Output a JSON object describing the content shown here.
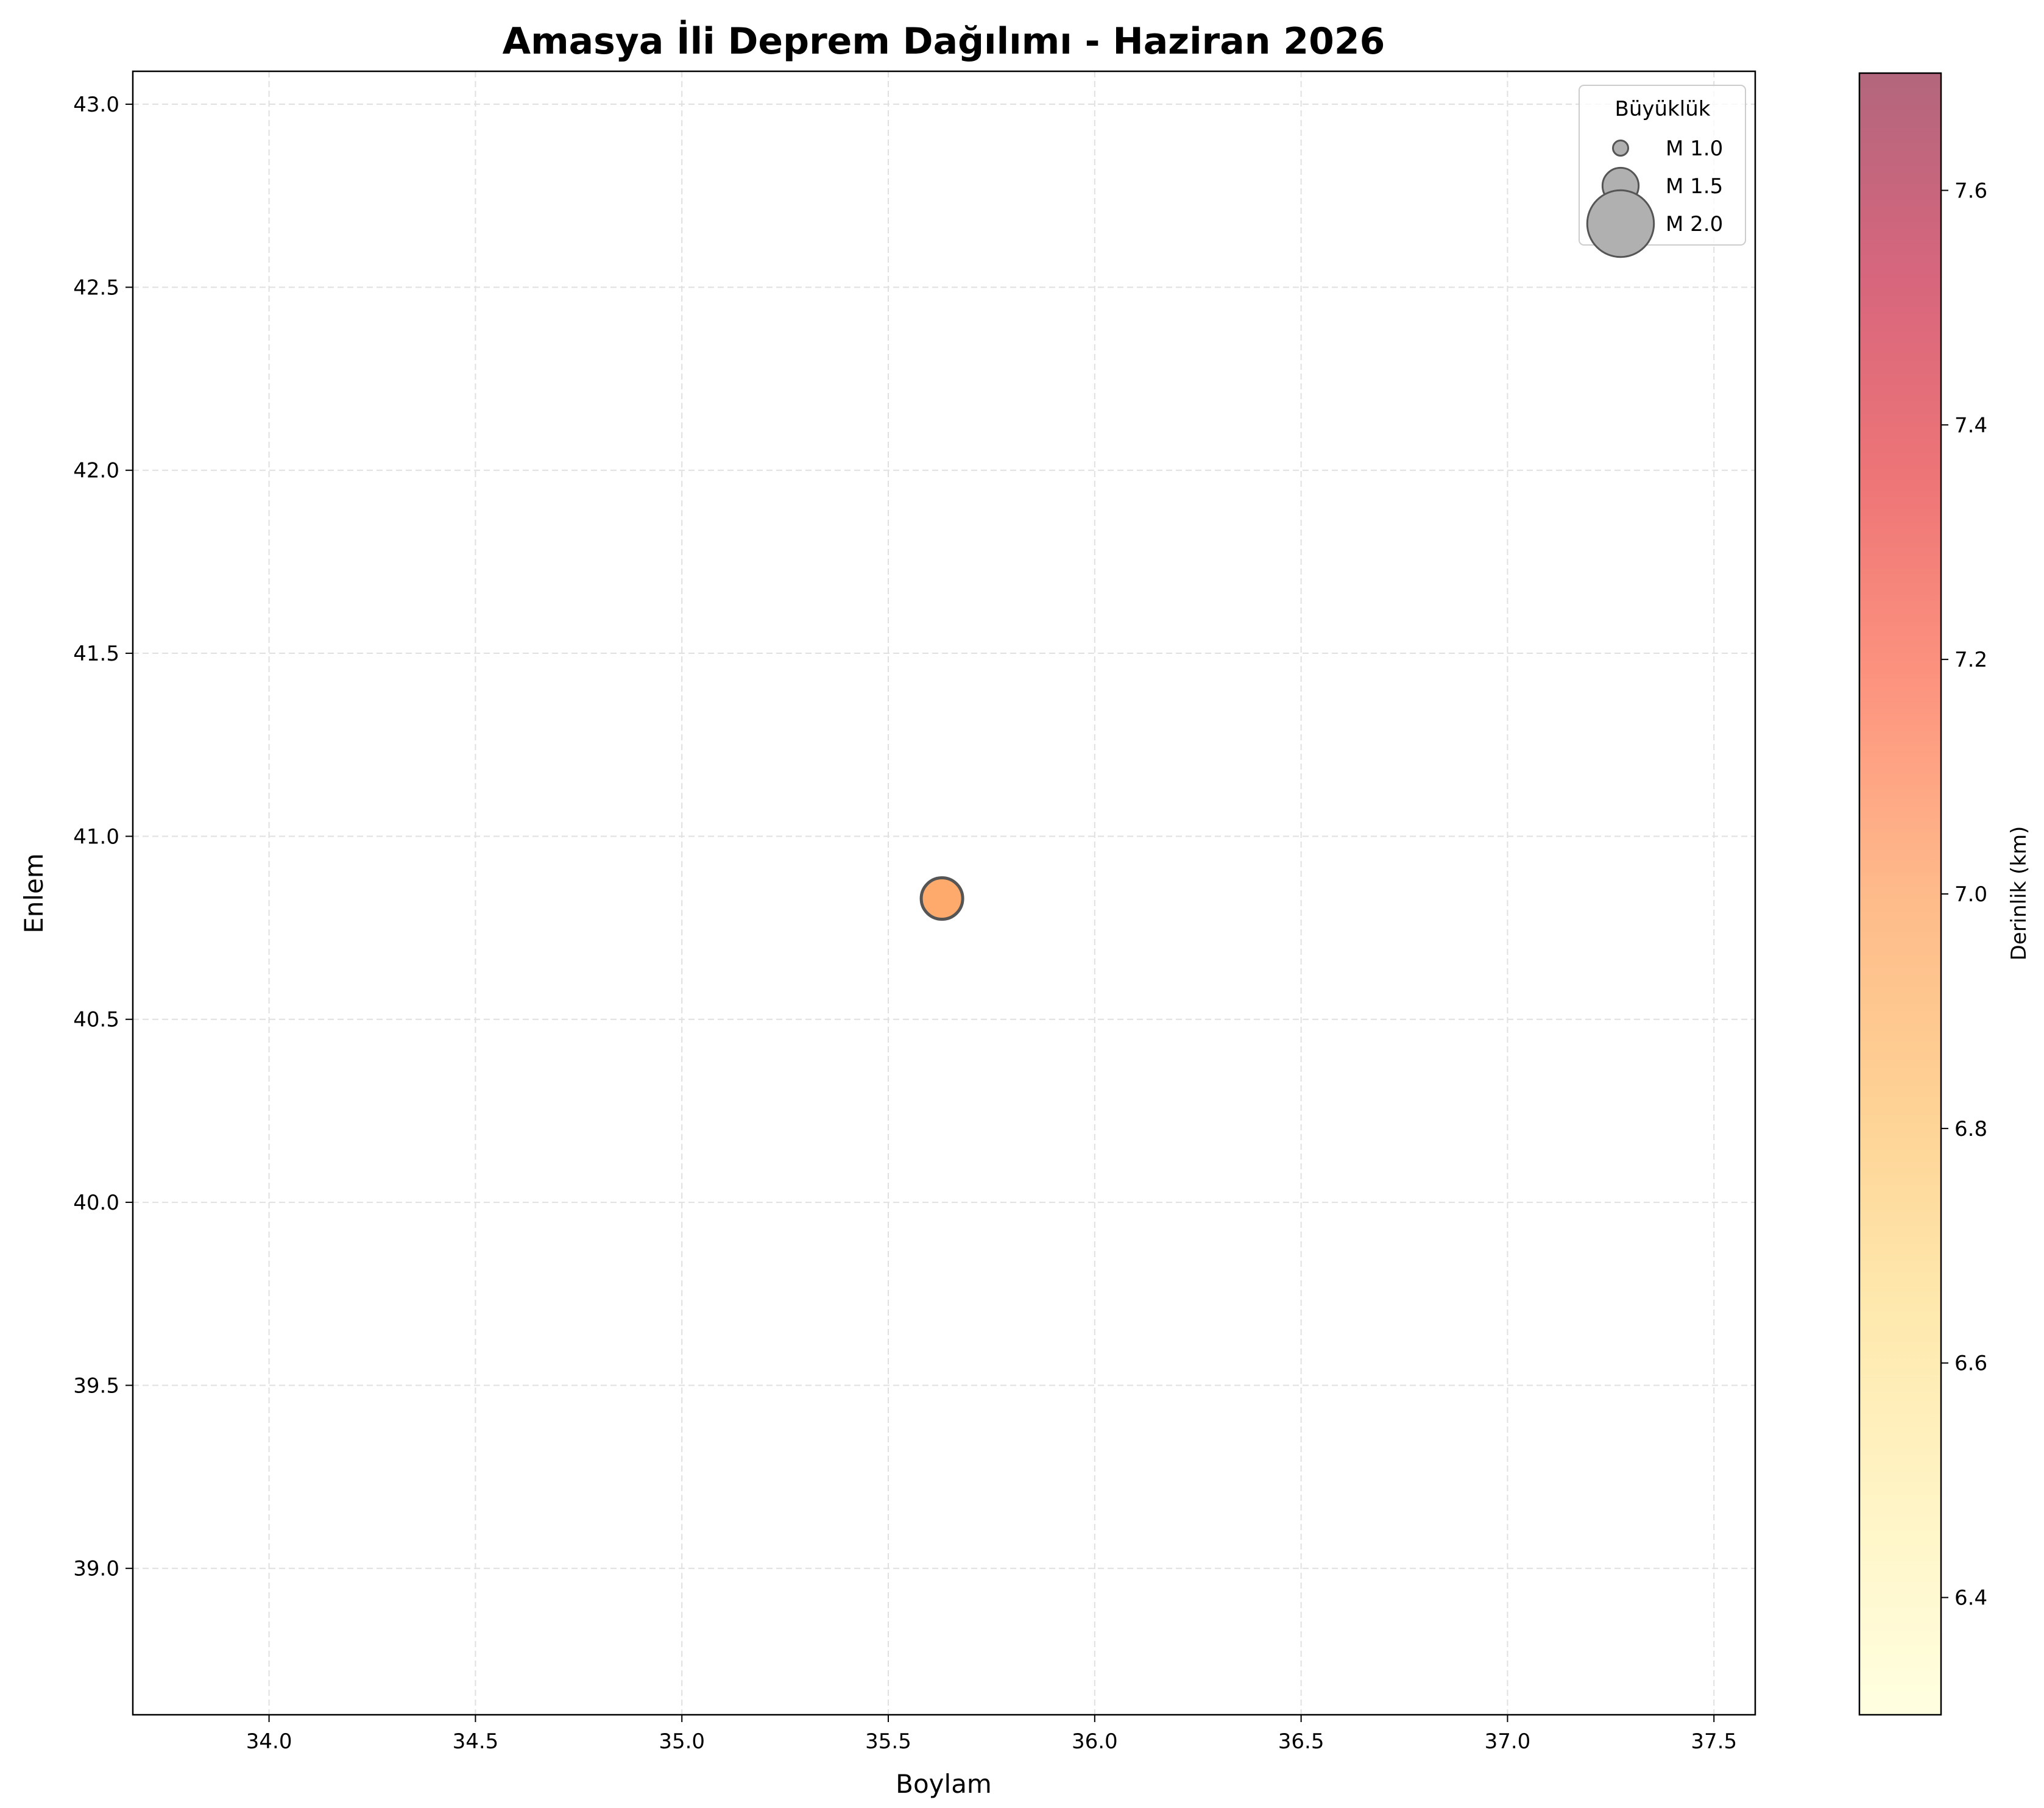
{
  "chart_data": {
    "type": "scatter",
    "title": "Amasya İli Deprem Dağılımı - Haziran 2026",
    "xlabel": "Boylam",
    "ylabel": "Enlem",
    "xlim": [
      33.67,
      37.6
    ],
    "ylim": [
      38.6,
      43.09
    ],
    "xticks": [
      34.0,
      34.5,
      35.0,
      35.5,
      36.0,
      36.5,
      37.0,
      37.5
    ],
    "xtick_labels": [
      "34.0",
      "34.5",
      "35.0",
      "35.5",
      "36.0",
      "36.5",
      "37.0",
      "37.5"
    ],
    "yticks": [
      39.0,
      39.5,
      40.0,
      40.5,
      41.0,
      41.5,
      42.0,
      42.5,
      43.0
    ],
    "ytick_labels": [
      "39.0",
      "39.5",
      "40.0",
      "40.5",
      "41.0",
      "41.5",
      "42.0",
      "42.5",
      "43.0"
    ],
    "grid": true,
    "points": [
      {
        "x": 35.63,
        "y": 40.83,
        "magnitude": 1.6,
        "depth": 7.0
      }
    ],
    "legend": {
      "title": "Büyüklük",
      "placement": "top-right",
      "entries": [
        {
          "label": "M 1.0",
          "magnitude": 1.0
        },
        {
          "label": "M 1.5",
          "magnitude": 1.5
        },
        {
          "label": "M 2.0",
          "magnitude": 2.0
        }
      ]
    },
    "colorbar": {
      "label": "Derinlik (km)",
      "colormap": "YlOrRd",
      "range": [
        6.3,
        7.7
      ],
      "ticks": [
        6.4,
        6.6,
        6.8,
        7.0,
        7.2,
        7.4,
        7.6
      ],
      "tick_labels": [
        "6.4",
        "6.6",
        "6.8",
        "7.0",
        "7.2",
        "7.4",
        "7.6"
      ]
    },
    "colors": {
      "grid": "#e0e0e0",
      "marker_edge": "#555555",
      "legend_marker": "#b0b0b0",
      "colormap_stops": [
        "#ffffcc",
        "#ffeda0",
        "#fed976",
        "#feb24c",
        "#fd8d3c",
        "#fc4e2a",
        "#e31a1c",
        "#bd0026",
        "#800026"
      ]
    }
  }
}
